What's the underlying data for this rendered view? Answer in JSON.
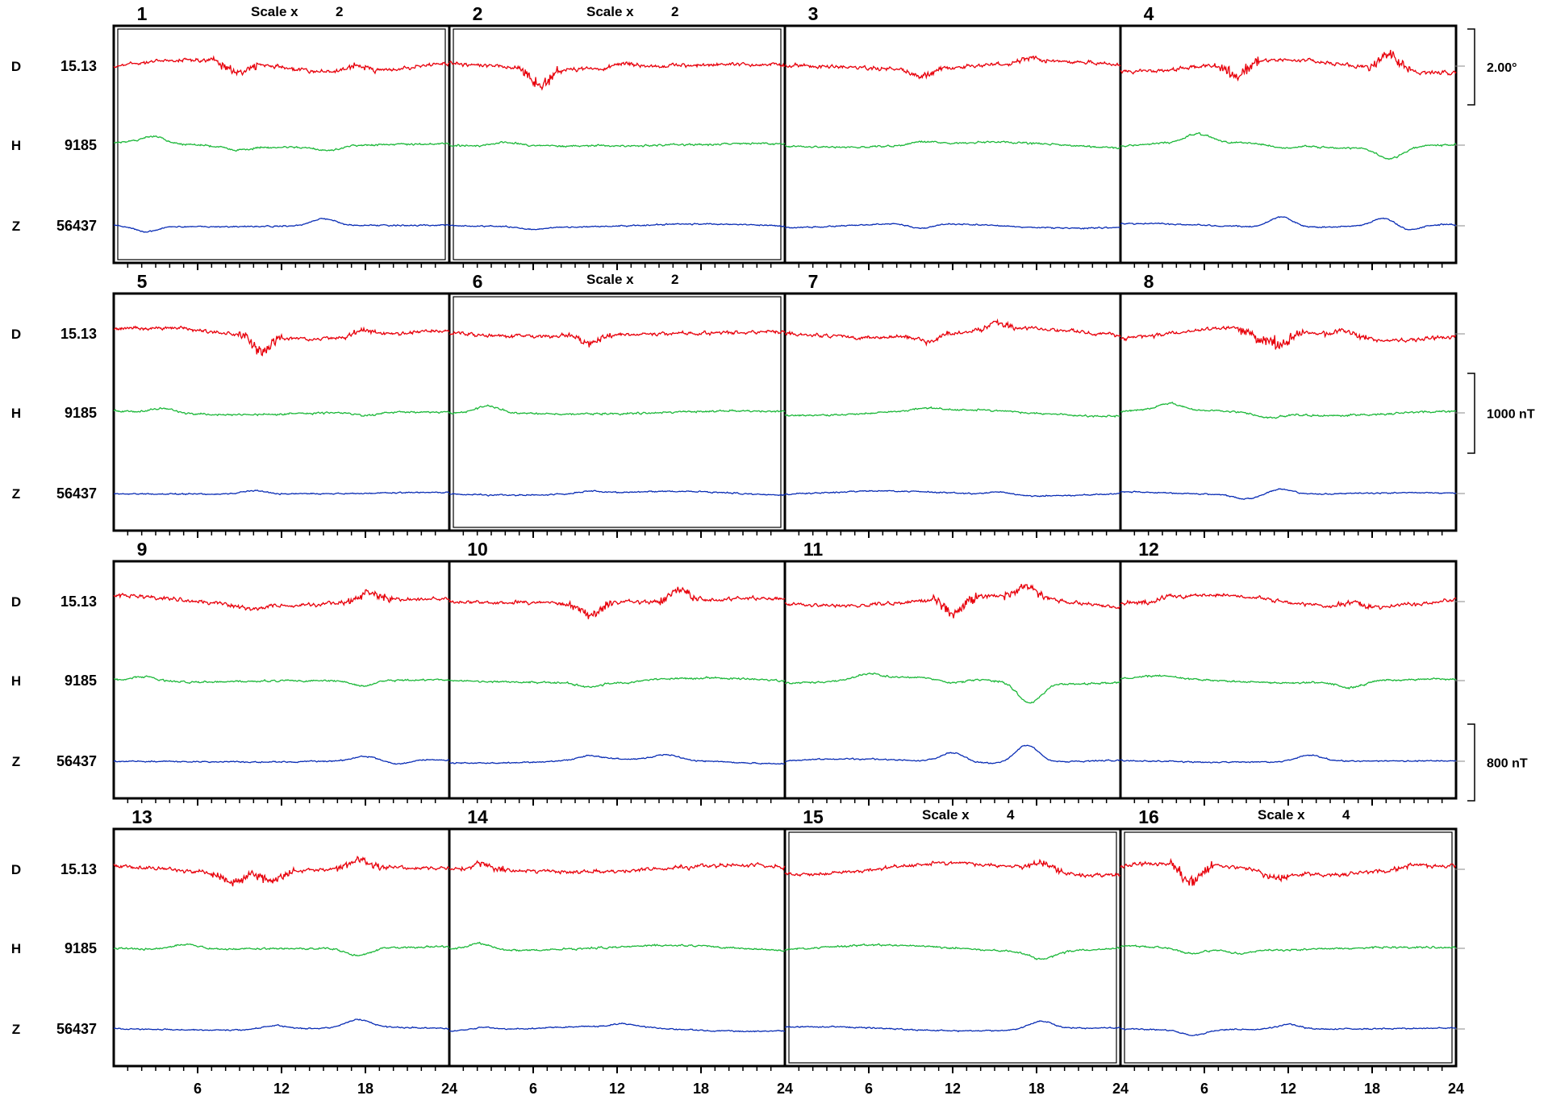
{
  "chart_data": {
    "type": "line",
    "title": "",
    "components": [
      {
        "key": "D",
        "label": "D",
        "baseline": "15.13",
        "color": "#e8000b"
      },
      {
        "key": "H",
        "label": "H",
        "baseline": "9185",
        "color": "#1db83a"
      },
      {
        "key": "Z",
        "label": "Z",
        "baseline": "56437",
        "color": "#0a2db5"
      }
    ],
    "x_ticks": [
      "6",
      "12",
      "18",
      "24"
    ],
    "x_range_hours": [
      0,
      24
    ],
    "days": [
      {
        "n": "1",
        "scale": "2"
      },
      {
        "n": "2",
        "scale": "2"
      },
      {
        "n": "3",
        "scale": ""
      },
      {
        "n": "4",
        "scale": ""
      },
      {
        "n": "5",
        "scale": ""
      },
      {
        "n": "6",
        "scale": "2"
      },
      {
        "n": "7",
        "scale": ""
      },
      {
        "n": "8",
        "scale": ""
      },
      {
        "n": "9",
        "scale": ""
      },
      {
        "n": "10",
        "scale": ""
      },
      {
        "n": "11",
        "scale": ""
      },
      {
        "n": "12",
        "scale": ""
      },
      {
        "n": "13",
        "scale": ""
      },
      {
        "n": "14",
        "scale": ""
      },
      {
        "n": "15",
        "scale": "4"
      },
      {
        "n": "16",
        "scale": "4"
      }
    ],
    "scale_prefix": "Scale x",
    "scale_bars": [
      {
        "label": "2.00°",
        "row": 1
      },
      {
        "label": "1000 nT",
        "row": 2
      },
      {
        "label": "800 nT",
        "row": 3
      }
    ],
    "events": {
      "D": [
        [
          [
            8.7,
            -12
          ],
          [
            17.3,
            7
          ]
        ],
        [
          [
            6.5,
            -20
          ],
          [
            12.5,
            5
          ]
        ],
        [
          [
            9.7,
            -10
          ],
          [
            17.5,
            6
          ]
        ],
        [
          [
            8.3,
            -17
          ],
          [
            19.2,
            19
          ]
        ],
        [
          [
            10.5,
            -18
          ],
          [
            18,
            7
          ]
        ],
        [
          [
            10,
            -10
          ]
        ],
        [
          [
            10.2,
            -8
          ],
          [
            15.2,
            8
          ]
        ],
        [
          [
            10,
            -15
          ],
          [
            11.5,
            -18
          ],
          [
            16,
            8
          ]
        ],
        [
          [
            9.8,
            -4
          ],
          [
            18.3,
            10
          ]
        ],
        [
          [
            10,
            -15
          ],
          [
            16.5,
            13
          ]
        ],
        [
          [
            12.2,
            -20
          ],
          [
            17.3,
            14
          ]
        ],
        [
          [
            2,
            -5
          ],
          [
            16.5,
            6
          ]
        ],
        [
          [
            8.5,
            -12
          ],
          [
            11.3,
            -12
          ],
          [
            17.5,
            11
          ]
        ],
        [
          [
            2.3,
            7
          ]
        ],
        [
          [
            18.2,
            10
          ]
        ],
        [
          [
            5,
            -22
          ],
          [
            11,
            -8
          ],
          [
            21,
            5
          ]
        ]
      ],
      "H": [
        [
          [
            2.8,
            8
          ],
          [
            8.8,
            -4
          ],
          [
            15.3,
            -5
          ]
        ],
        [
          [
            4,
            4
          ]
        ],
        [
          [
            9.8,
            4
          ]
        ],
        [
          [
            5.5,
            10
          ],
          [
            11.5,
            -4
          ],
          [
            19.3,
            -14
          ]
        ],
        [
          [
            3.5,
            5
          ],
          [
            18,
            -4
          ]
        ],
        [
          [
            2.8,
            9
          ]
        ],
        [
          [
            10,
            3
          ]
        ],
        [
          [
            3.5,
            8
          ],
          [
            10.5,
            -5
          ]
        ],
        [
          [
            2.2,
            5
          ],
          [
            17.8,
            -7
          ]
        ],
        [
          [
            10,
            -7
          ],
          [
            12.5,
            -3
          ]
        ],
        [
          [
            6,
            7
          ],
          [
            12,
            -6
          ],
          [
            17.5,
            -25
          ]
        ],
        [
          [
            3,
            3
          ],
          [
            16.5,
            -8
          ]
        ],
        [
          [
            5.2,
            6
          ],
          [
            17.5,
            -9
          ]
        ],
        [
          [
            2.2,
            8
          ]
        ],
        [
          [
            18.4,
            -10
          ]
        ],
        [
          [
            5,
            -6
          ],
          [
            8.5,
            -4
          ]
        ]
      ],
      "Z": [
        [
          [
            2.3,
            -7
          ],
          [
            15,
            9
          ]
        ],
        [
          [
            6,
            -3
          ]
        ],
        [
          [
            9.8,
            -6
          ]
        ],
        [
          [
            11.5,
            13
          ],
          [
            18.9,
            10
          ],
          [
            20.5,
            -7
          ]
        ],
        [
          [
            10,
            4
          ]
        ],
        [
          [
            10,
            3
          ]
        ],
        [
          [
            15.3,
            4
          ]
        ],
        [
          [
            11.5,
            7
          ],
          [
            9,
            -5
          ]
        ],
        [
          [
            18,
            5
          ],
          [
            20.3,
            -5
          ]
        ],
        [
          [
            10,
            5
          ],
          [
            15.5,
            6
          ]
        ],
        [
          [
            12,
            12
          ],
          [
            17.3,
            22
          ]
        ],
        [
          [
            13.5,
            8
          ]
        ],
        [
          [
            11.5,
            5
          ],
          [
            17.5,
            10
          ]
        ],
        [
          [
            2.5,
            4
          ],
          [
            12.5,
            4
          ]
        ],
        [
          [
            18.3,
            10
          ]
        ],
        [
          [
            5.2,
            -7
          ],
          [
            12,
            6
          ]
        ]
      ]
    }
  }
}
